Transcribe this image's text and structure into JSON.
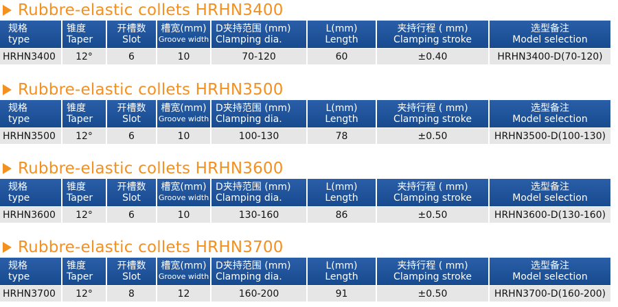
{
  "theme": {
    "title_color": "#f39020",
    "header_bg": "#1c4f93",
    "row_bg": "#e6e6e6",
    "icon": "play-triangle-icon"
  },
  "headers": [
    {
      "cn": "规格",
      "en": "type"
    },
    {
      "cn": "锥度",
      "en": "Taper"
    },
    {
      "cn": "开槽数",
      "en": "Slot"
    },
    {
      "cn": "槽宽(mm)",
      "en": "Groove width"
    },
    {
      "cn": "D夹持范围 (mm)",
      "en": "Clamping dia."
    },
    {
      "cn": "L(mm)",
      "en": "Length"
    },
    {
      "cn": "夹持行程 ( mm)",
      "en": "Clamping stroke"
    },
    {
      "cn": "选型备注",
      "en": "Model selection"
    }
  ],
  "sections": [
    {
      "title": "Rubbre-elastic collets HRHN3400",
      "row": [
        "HRHN3400",
        "12°",
        "6",
        "10",
        "70-120",
        "60",
        "±0.40",
        "HRHN3400-D(70-120)"
      ]
    },
    {
      "title": "Rubbre-elastic collets HRHN3500",
      "row": [
        "HRHN3500",
        "12°",
        "6",
        "10",
        "100-130",
        "78",
        "±0.50",
        "HRHN3500-D(100-130)"
      ]
    },
    {
      "title": "Rubbre-elastic collets HRHN3600",
      "row": [
        "HRHN3600",
        "12°",
        "6",
        "10",
        "130-160",
        "86",
        "±0.50",
        "HRHN3600-D(130-160)"
      ]
    },
    {
      "title": "Rubbre-elastic collets HRHN3700",
      "row": [
        "HRHN3700",
        "12°",
        "8",
        "12",
        "160-200",
        "91",
        "±0.50",
        "HRHN3700-D(160-200)"
      ]
    }
  ]
}
